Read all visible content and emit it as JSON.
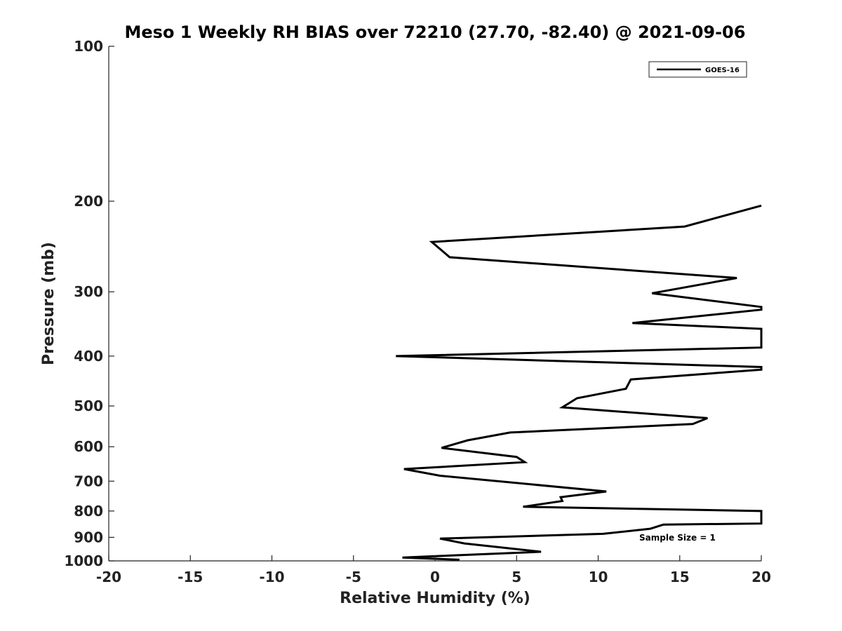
{
  "chart_data": {
    "type": "line",
    "title": "Meso 1 Weekly RH BIAS over 72210 (27.70, -82.40) @ 2021-09-06",
    "xlabel": "Relative Humidity (%)",
    "ylabel": "Pressure (mb)",
    "xlim": [
      -20,
      20
    ],
    "ylim": [
      100,
      1000
    ],
    "yscale": "log",
    "yaxis_inverted": true,
    "x_ticks": [
      -20,
      -15,
      -10,
      -5,
      0,
      5,
      10,
      15,
      20
    ],
    "y_ticks": [
      100,
      200,
      300,
      400,
      500,
      600,
      700,
      800,
      900,
      1000
    ],
    "grid": false,
    "legend": {
      "placement": "top-right",
      "entries": [
        "GOES-16"
      ]
    },
    "annotation": "Sample Size = 1",
    "line_color": "#000000",
    "series": [
      {
        "name": "GOES-16",
        "points": [
          {
            "x": 1.5,
            "y": 995
          },
          {
            "x": -2.0,
            "y": 985
          },
          {
            "x": 6.5,
            "y": 960
          },
          {
            "x": 1.8,
            "y": 925
          },
          {
            "x": 0.3,
            "y": 905
          },
          {
            "x": 10.3,
            "y": 886
          },
          {
            "x": 13.2,
            "y": 866
          },
          {
            "x": 14.0,
            "y": 850
          },
          {
            "x": 20.0,
            "y": 846
          },
          {
            "x": 20.0,
            "y": 800
          },
          {
            "x": 5.4,
            "y": 785
          },
          {
            "x": 7.8,
            "y": 765
          },
          {
            "x": 7.7,
            "y": 752
          },
          {
            "x": 10.5,
            "y": 733
          },
          {
            "x": 0.3,
            "y": 683
          },
          {
            "x": -1.9,
            "y": 663
          },
          {
            "x": 5.5,
            "y": 643
          },
          {
            "x": 5.0,
            "y": 628
          },
          {
            "x": 0.4,
            "y": 603
          },
          {
            "x": 2.0,
            "y": 583
          },
          {
            "x": 4.6,
            "y": 563
          },
          {
            "x": 15.8,
            "y": 542
          },
          {
            "x": 16.7,
            "y": 528
          },
          {
            "x": 7.8,
            "y": 503
          },
          {
            "x": 8.7,
            "y": 483
          },
          {
            "x": 11.7,
            "y": 463
          },
          {
            "x": 12.0,
            "y": 444
          },
          {
            "x": 20.0,
            "y": 425
          },
          {
            "x": 20.0,
            "y": 420
          },
          {
            "x": -2.4,
            "y": 400
          },
          {
            "x": 20.0,
            "y": 385
          },
          {
            "x": 20.0,
            "y": 354
          },
          {
            "x": 12.1,
            "y": 345
          },
          {
            "x": 20.0,
            "y": 325
          },
          {
            "x": 20.0,
            "y": 321
          },
          {
            "x": 13.3,
            "y": 302
          },
          {
            "x": 18.5,
            "y": 282
          },
          {
            "x": 0.9,
            "y": 257
          },
          {
            "x": -0.2,
            "y": 240
          },
          {
            "x": 15.3,
            "y": 224
          },
          {
            "x": 20.0,
            "y": 204
          }
        ]
      }
    ]
  }
}
